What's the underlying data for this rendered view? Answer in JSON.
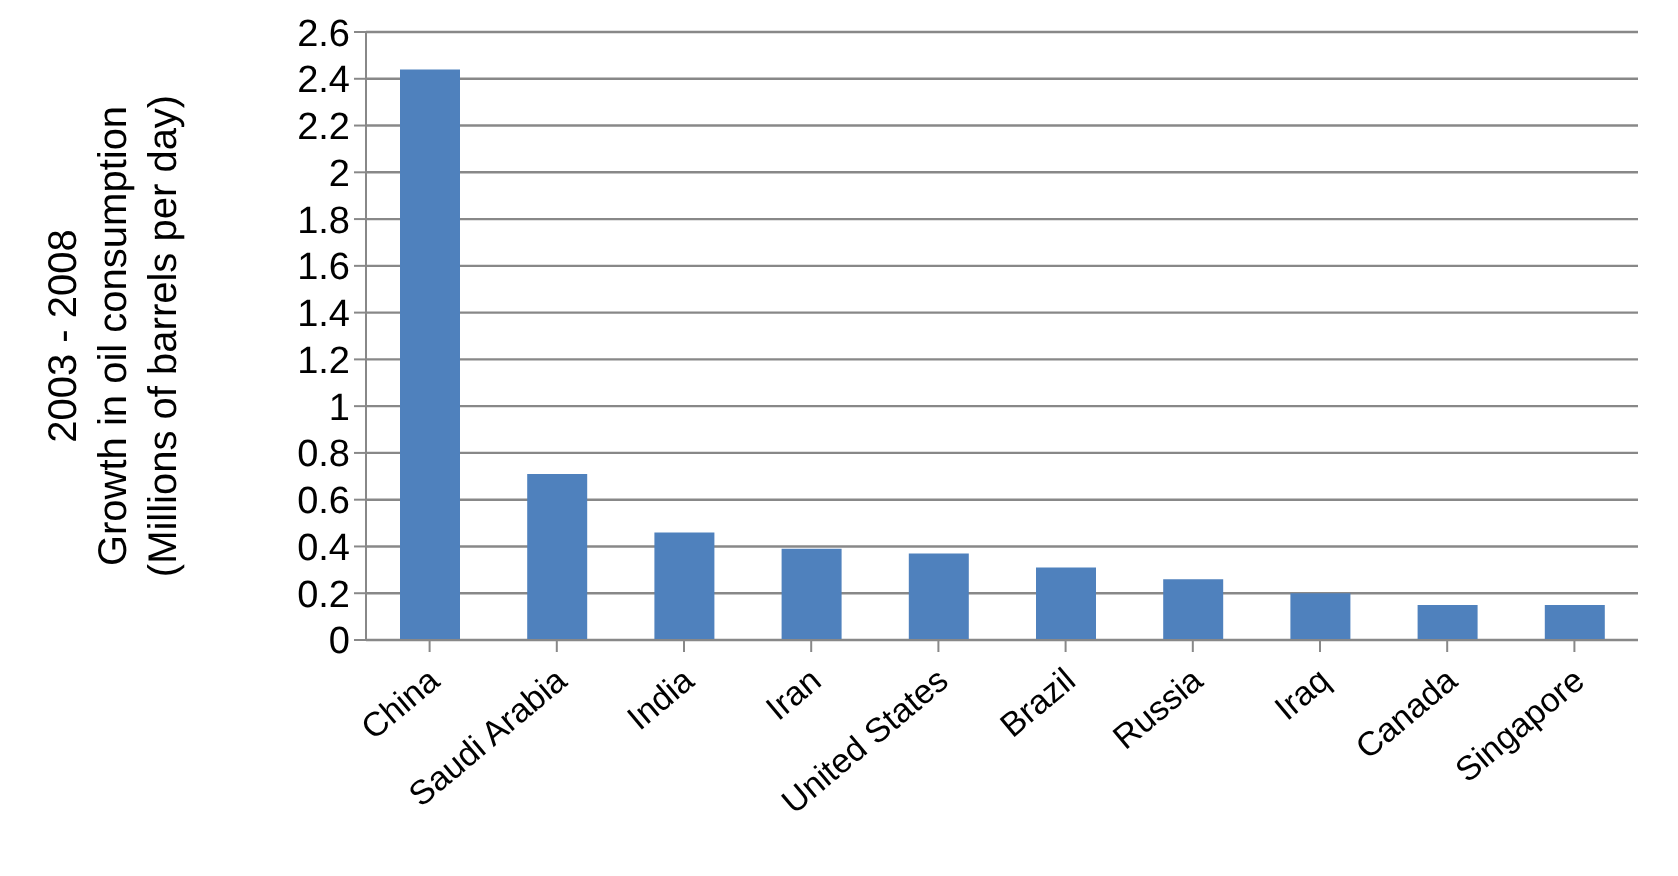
{
  "chart_data": {
    "type": "bar",
    "ylabel": "2003 - 2008\nGrowth in oil consumption\n(Millions of barrels per day)",
    "categories": [
      "China",
      "Saudi Arabia",
      "India",
      "Iran",
      "United States",
      "Brazil",
      "Russia",
      "Iraq",
      "Canada",
      "Singapore"
    ],
    "values": [
      2.44,
      0.71,
      0.46,
      0.39,
      0.37,
      0.31,
      0.26,
      0.2,
      0.15,
      0.15
    ],
    "color": "#4f81bd",
    "ylim": [
      0,
      2.6
    ],
    "yticks": [
      0,
      0.2,
      0.4,
      0.6,
      0.8,
      1,
      1.2,
      1.4,
      1.6,
      1.8,
      2,
      2.2,
      2.4,
      2.6
    ],
    "grid": "y",
    "legend": false
  }
}
